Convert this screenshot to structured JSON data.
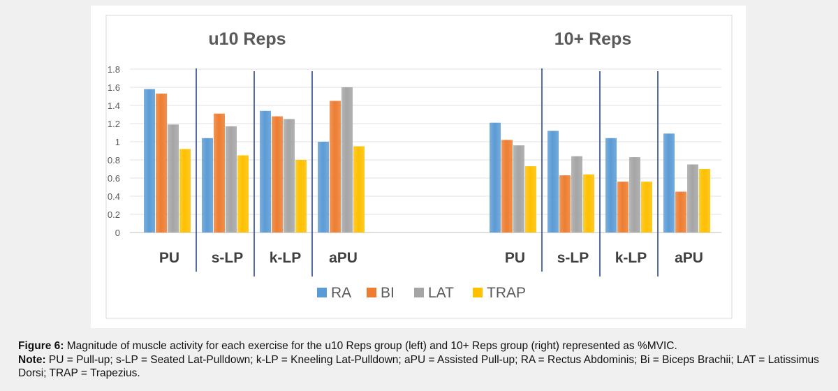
{
  "chart_data": {
    "type": "bar",
    "groups": [
      {
        "title": "u10 Reps",
        "categories": [
          "PU",
          "s-LP",
          "k-LP",
          "aPU"
        ]
      },
      {
        "title": "10+ Reps",
        "categories": [
          "PU",
          "s-LP",
          "k-LP",
          "aPU"
        ]
      }
    ],
    "series": [
      {
        "name": "RA",
        "color": "#5b9bd5",
        "values": [
          1.58,
          1.04,
          1.34,
          1.0,
          1.21,
          1.12,
          1.04,
          1.09
        ]
      },
      {
        "name": "BI",
        "color": "#ed7d31",
        "values": [
          1.53,
          1.31,
          1.28,
          1.45,
          1.02,
          0.63,
          0.56,
          0.45
        ]
      },
      {
        "name": "LAT",
        "color": "#a5a5a5",
        "values": [
          1.19,
          1.17,
          1.25,
          1.6,
          0.96,
          0.84,
          0.83,
          0.75
        ]
      },
      {
        "name": "TRAP",
        "color": "#ffc000",
        "values": [
          0.92,
          0.85,
          0.8,
          0.95,
          0.73,
          0.64,
          0.56,
          0.7
        ]
      }
    ],
    "ylim": [
      0,
      1.8
    ],
    "yticks": [
      "0",
      "0.2",
      "0.4",
      "0.6",
      "0.8",
      "1",
      "1.2",
      "1.4",
      "1.6",
      "1.8"
    ],
    "grid": true,
    "legend_position": "bottom",
    "divider_color": "#1f3c88"
  },
  "caption": {
    "figure_label": "Figure 6:",
    "figure_text": " Magnitude of muscle activity for each exercise for the u10 Reps group (left) and 10+ Reps group (right) represented as %MVIC.",
    "note_label": "Note:",
    "note_text": " PU = Pull-up; s-LP = Seated Lat-Pulldown; k-LP = Kneeling Lat-Pulldown; aPU = Assisted Pull-up; RA = Rectus Abdominis; Bi = Biceps Brachii; LAT = Latissimus Dorsi; TRAP = Trapezius."
  }
}
